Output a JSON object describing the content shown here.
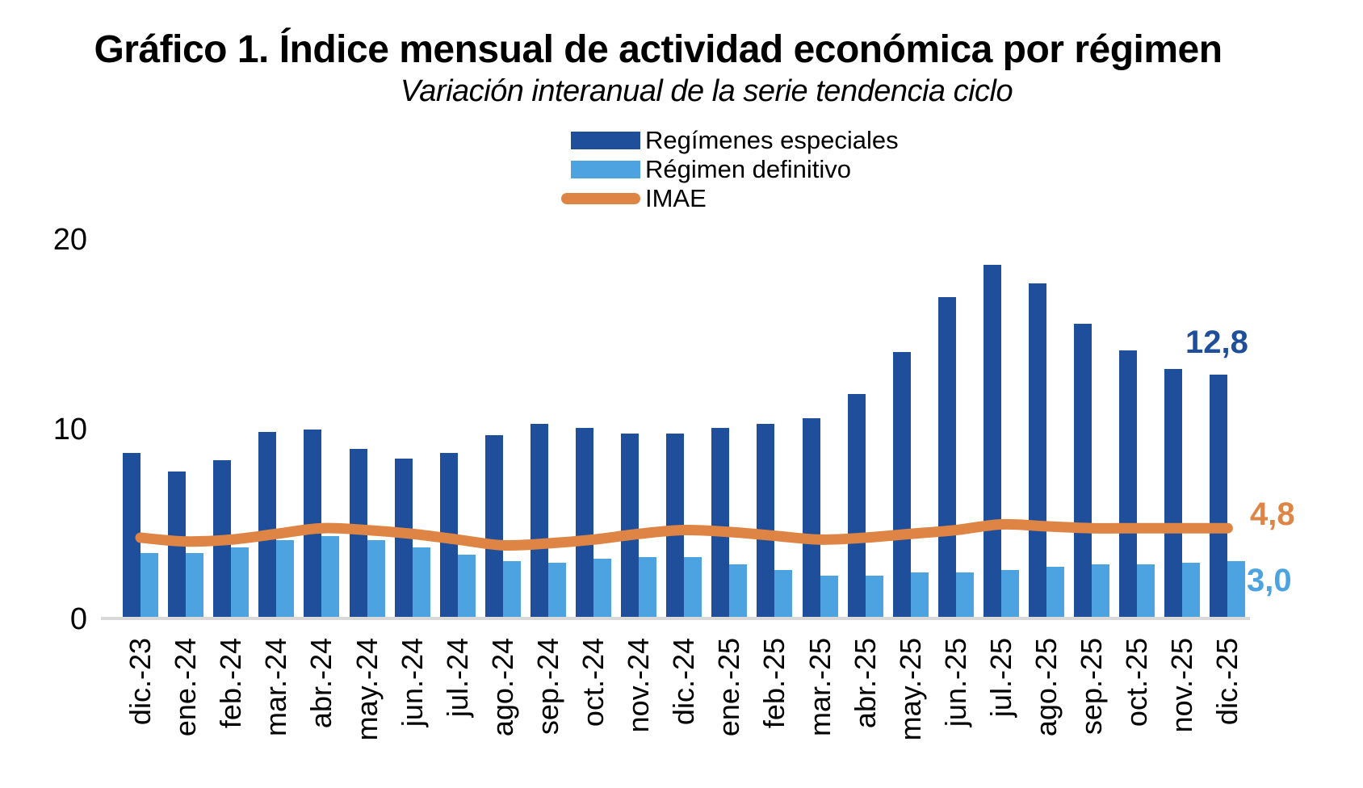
{
  "chart_data": {
    "type": "bar",
    "title": "Gráfico 1. Índice mensual de actividad económica por régimen",
    "subtitle": "Variación interanual de la serie tendencia ciclo",
    "categories": [
      "dic.-23",
      "ene.-24",
      "feb.-24",
      "mar.-24",
      "abr.-24",
      "may.-24",
      "jun.-24",
      "jul.-24",
      "ago.-24",
      "sep.-24",
      "oct.-24",
      "nov.-24",
      "dic.-24",
      "ene.-25",
      "feb.-25",
      "mar.-25",
      "abr.-25",
      "may.-25",
      "jun.-25",
      "jul.-25",
      "ago.-25",
      "sep.-25",
      "oct.-25",
      "nov.-25",
      "dic.-25"
    ],
    "series": [
      {
        "name": "Regímenes especiales",
        "type": "bar",
        "color": "#1F4E9B",
        "values": [
          8.7,
          7.7,
          8.3,
          9.8,
          9.9,
          8.9,
          8.4,
          8.7,
          9.6,
          10.2,
          10.0,
          9.7,
          9.7,
          10.0,
          10.2,
          10.5,
          11.8,
          14.0,
          16.9,
          18.6,
          17.6,
          15.5,
          14.1,
          13.1,
          12.8
        ]
      },
      {
        "name": "Régimen definitivo",
        "type": "bar",
        "color": "#4DA3DF",
        "values": [
          3.4,
          3.4,
          3.7,
          4.1,
          4.3,
          4.1,
          3.7,
          3.3,
          3.0,
          2.9,
          3.1,
          3.2,
          3.2,
          2.8,
          2.5,
          2.2,
          2.2,
          2.4,
          2.4,
          2.5,
          2.7,
          2.8,
          2.8,
          2.9,
          3.0
        ]
      },
      {
        "name": "IMAE",
        "type": "line",
        "color": "#DE8545",
        "values": [
          4.3,
          4.1,
          4.2,
          4.5,
          4.8,
          4.7,
          4.5,
          4.2,
          3.9,
          4.0,
          4.2,
          4.5,
          4.7,
          4.6,
          4.4,
          4.2,
          4.3,
          4.5,
          4.7,
          5.0,
          4.9,
          4.8,
          4.8,
          4.8,
          4.8
        ]
      }
    ],
    "ylim": [
      0,
      20
    ],
    "yticks": [
      0,
      10,
      20
    ],
    "grid": false,
    "legend_position": "top",
    "axis_line_color": "#D9D9D9",
    "end_labels": [
      {
        "text": "12,8",
        "series": "Regímenes especiales",
        "color": "#1F4E9B"
      },
      {
        "text": "4,8",
        "series": "IMAE",
        "color": "#DE8545"
      },
      {
        "text": "3,0",
        "series": "Régimen definitivo",
        "color": "#4DA3DF"
      }
    ]
  }
}
